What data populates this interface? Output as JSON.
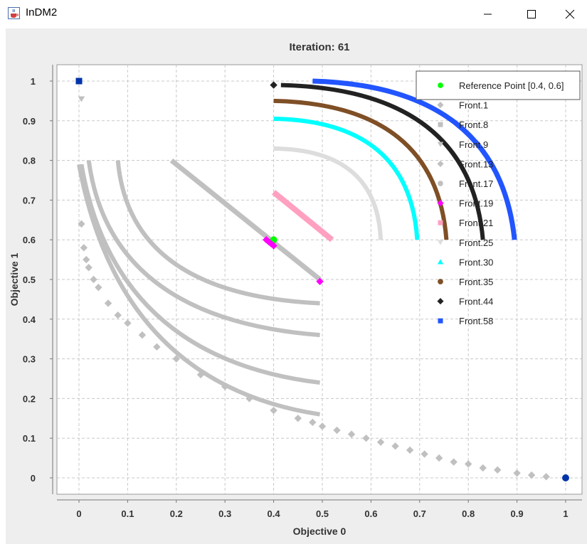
{
  "window": {
    "title": "InDM2",
    "app_icon": "java-cup-icon",
    "controls": [
      "minimize-icon",
      "maximize-icon",
      "close-icon"
    ]
  },
  "chart_data": {
    "type": "scatter",
    "title": "Iteration: 61",
    "xlabel": "Objective 0",
    "ylabel": "Objective 1",
    "xlim": [
      -0.04,
      1.04
    ],
    "ylim": [
      -0.04,
      1.04
    ],
    "xticks": [
      "0",
      "0.1",
      "0.2",
      "0.3",
      "0.4",
      "0.5",
      "0.6",
      "0.7",
      "0.8",
      "0.9",
      "1"
    ],
    "yticks": [
      "0",
      "0.1",
      "0.2",
      "0.3",
      "0.4",
      "0.5",
      "0.6",
      "0.7",
      "0.8",
      "0.9",
      "1"
    ],
    "grid": true,
    "legend_position": "top-right",
    "series": [
      {
        "name": "Reference Point [0.4, 0.6]",
        "marker": "circle",
        "color": "#00ff00",
        "points": [
          [
            0.4,
            0.6
          ]
        ]
      },
      {
        "name": "Front.1",
        "marker": "diamond",
        "color": "#c0c0c0",
        "points": [
          [
            0.005,
            0.64
          ],
          [
            0.01,
            0.58
          ],
          [
            0.015,
            0.55
          ],
          [
            0.02,
            0.53
          ],
          [
            0.03,
            0.5
          ],
          [
            0.04,
            0.48
          ],
          [
            0.06,
            0.44
          ],
          [
            0.08,
            0.41
          ],
          [
            0.1,
            0.39
          ],
          [
            0.13,
            0.36
          ],
          [
            0.16,
            0.33
          ],
          [
            0.2,
            0.3
          ],
          [
            0.25,
            0.26
          ],
          [
            0.3,
            0.23
          ],
          [
            0.35,
            0.2
          ],
          [
            0.4,
            0.17
          ],
          [
            0.45,
            0.15
          ],
          [
            0.48,
            0.14
          ],
          [
            0.5,
            0.13
          ],
          [
            0.53,
            0.12
          ],
          [
            0.56,
            0.11
          ],
          [
            0.59,
            0.1
          ],
          [
            0.62,
            0.09
          ],
          [
            0.65,
            0.08
          ],
          [
            0.68,
            0.07
          ],
          [
            0.71,
            0.06
          ],
          [
            0.74,
            0.05
          ],
          [
            0.77,
            0.04
          ],
          [
            0.8,
            0.035
          ],
          [
            0.83,
            0.025
          ],
          [
            0.86,
            0.02
          ],
          [
            0.9,
            0.012
          ],
          [
            0.93,
            0.007
          ],
          [
            0.96,
            0.003
          ],
          [
            1.0,
            0.0
          ]
        ]
      },
      {
        "name": "Front.8",
        "marker": "square",
        "color": "#c0c0c0",
        "points": []
      },
      {
        "name": "Front.9",
        "marker": "triangle-down",
        "color": "#c0c0c0",
        "points": [
          [
            0.005,
            0.955
          ]
        ]
      },
      {
        "name": "Front.13",
        "marker": "diamond",
        "color": "#c0c0c0",
        "points": []
      },
      {
        "name": "Front.17",
        "marker": "circle",
        "color": "#c0c0c0",
        "points": []
      },
      {
        "name": "Front.19",
        "marker": "diamond",
        "color": "#ff00ff",
        "points": [
          [
            0.385,
            0.6
          ],
          [
            0.39,
            0.595
          ],
          [
            0.395,
            0.59
          ],
          [
            0.4,
            0.585
          ],
          [
            0.495,
            0.495
          ]
        ]
      },
      {
        "name": "Front.21",
        "marker": "square",
        "color": "#ffa0c0",
        "points": []
      },
      {
        "name": "Front.25",
        "marker": "triangle-down",
        "color": "#dddddd",
        "points": []
      },
      {
        "name": "Front.30",
        "marker": "triangle-up",
        "color": "#00ffff",
        "points": []
      },
      {
        "name": "Front.35",
        "marker": "circle",
        "color": "#7f4f26",
        "points": []
      },
      {
        "name": "Front.44",
        "marker": "diamond",
        "color": "#222222",
        "points": [
          [
            0.4,
            0.99
          ]
        ]
      },
      {
        "name": "Front.58",
        "marker": "square",
        "color": "#2255ff",
        "points": [
          [
            0.0,
            1.0
          ]
        ]
      }
    ],
    "curves": [
      {
        "series": "Front.1",
        "color": "#c0c0c0",
        "from": [
          0.0,
          0.79
        ],
        "to": [
          0.495,
          0.16
        ],
        "shape": "convex",
        "bulge": 0.42,
        "width": 6
      },
      {
        "series": "Front.8",
        "color": "#c0c0c0",
        "from": [
          0.005,
          0.79
        ],
        "to": [
          0.495,
          0.24
        ],
        "shape": "convex",
        "bulge": 0.34,
        "width": 6
      },
      {
        "series": "Front.9",
        "color": "#c0c0c0",
        "from": [
          0.02,
          0.8
        ],
        "to": [
          0.495,
          0.36
        ],
        "shape": "convex",
        "bulge": 0.22,
        "width": 6
      },
      {
        "series": "Front.13",
        "color": "#c0c0c0",
        "from": [
          0.08,
          0.8
        ],
        "to": [
          0.495,
          0.44
        ],
        "shape": "convex",
        "bulge": 0.12,
        "width": 6
      },
      {
        "series": "Front.17",
        "color": "#c0c0c0",
        "from": [
          0.19,
          0.8
        ],
        "to": [
          0.495,
          0.5
        ],
        "shape": "linear",
        "bulge": 0.0,
        "width": 7
      },
      {
        "series": "Front.21",
        "color": "#ffa0c0",
        "from": [
          0.4,
          0.72
        ],
        "to": [
          0.52,
          0.6
        ],
        "shape": "linear",
        "bulge": 0.0,
        "width": 8
      },
      {
        "series": "Front.25",
        "color": "#dddddd",
        "from": [
          0.4,
          0.83
        ],
        "to": [
          0.62,
          0.6
        ],
        "shape": "concave",
        "bulge": 0.05,
        "width": 6
      },
      {
        "series": "Front.30",
        "color": "#00ffff",
        "from": [
          0.4,
          0.905
        ],
        "to": [
          0.695,
          0.6
        ],
        "shape": "concave",
        "bulge": 0.1,
        "width": 6
      },
      {
        "series": "Front.35",
        "color": "#7f4f26",
        "from": [
          0.4,
          0.95
        ],
        "to": [
          0.755,
          0.6
        ],
        "shape": "concave",
        "bulge": 0.14,
        "width": 6
      },
      {
        "series": "Front.44",
        "color": "#222222",
        "from": [
          0.415,
          0.99
        ],
        "to": [
          0.83,
          0.6
        ],
        "shape": "concave",
        "bulge": 0.18,
        "width": 6
      },
      {
        "series": "Front.58",
        "color": "#2255ff",
        "from": [
          0.48,
          1.0
        ],
        "to": [
          0.895,
          0.6
        ],
        "shape": "concave",
        "bulge": 0.22,
        "width": 7
      }
    ],
    "extra_points": [
      {
        "series": "Front.58",
        "marker": "circle",
        "color": "#0033aa",
        "points": [
          [
            1.0,
            0.0
          ]
        ]
      },
      {
        "series": "Front.58",
        "marker": "square",
        "color": "#0033aa",
        "points": [
          [
            0.0,
            1.0
          ]
        ]
      }
    ]
  }
}
